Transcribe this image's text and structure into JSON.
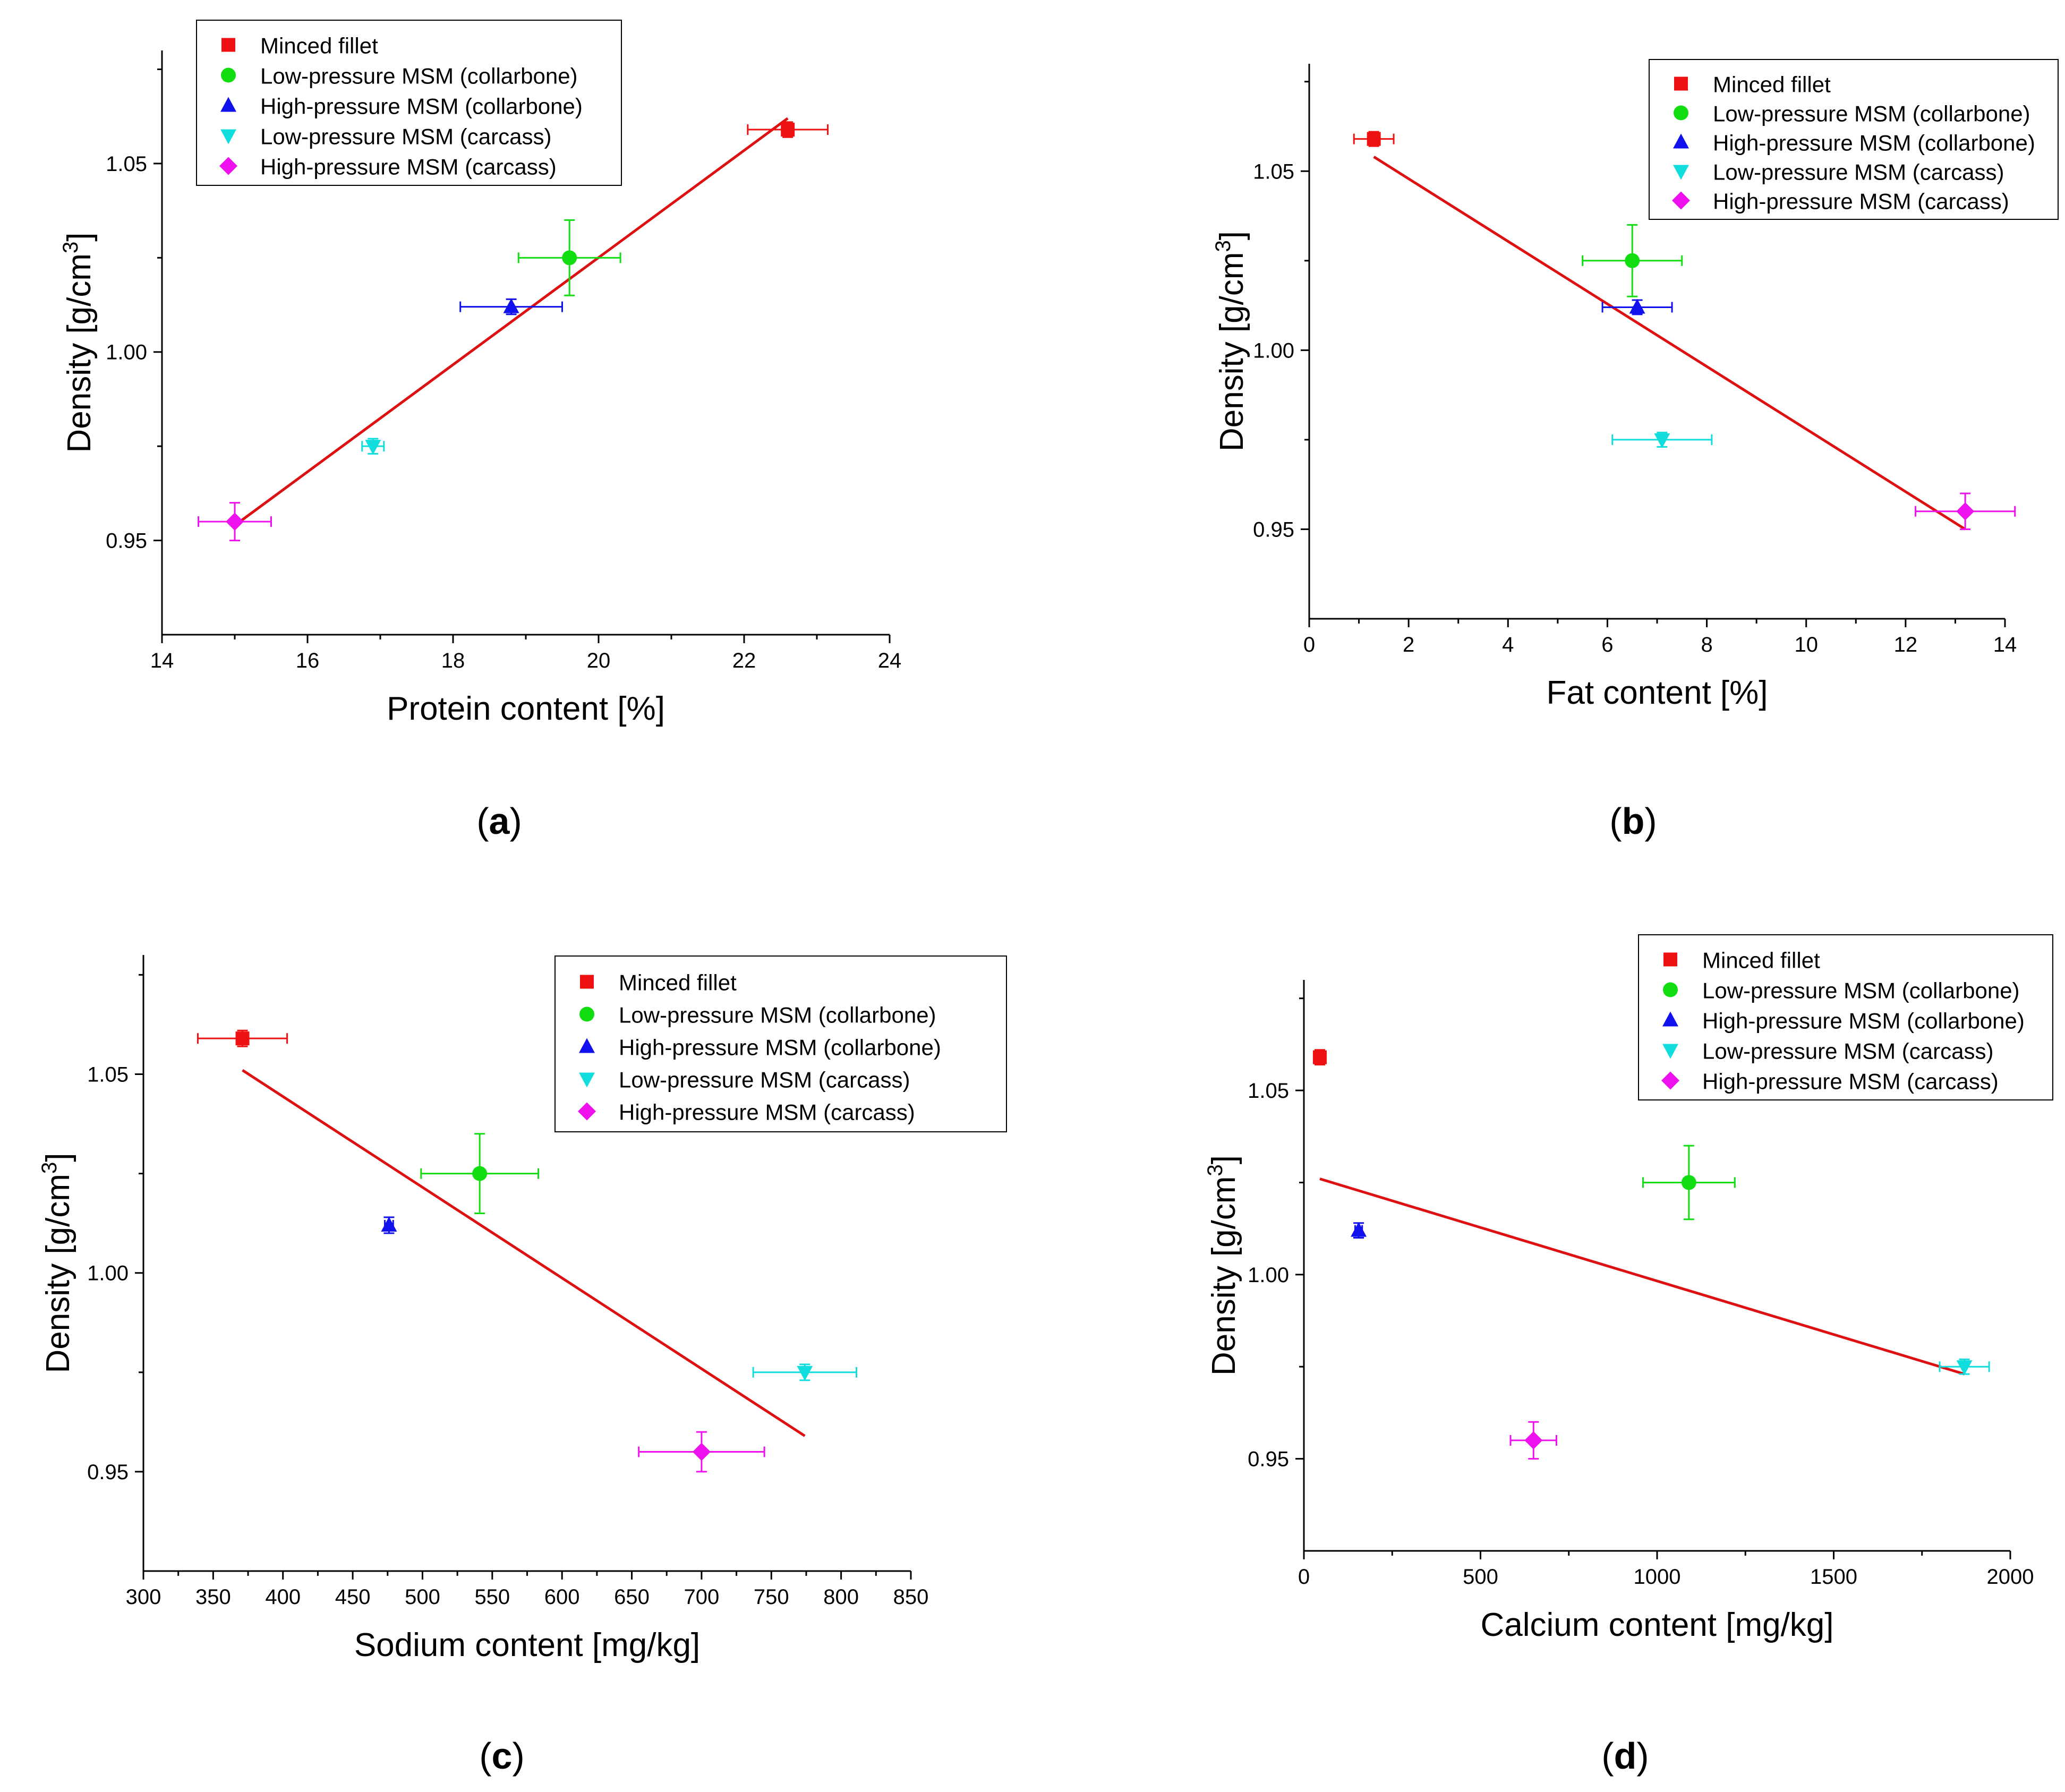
{
  "figure": {
    "captions": [
      "(a)",
      "(b)",
      "(c)",
      "(d)"
    ],
    "caption_letters": [
      "a",
      "b",
      "c",
      "d"
    ]
  },
  "legend_labels": [
    "Minced fillet",
    "Low-pressure MSM (collarbone)",
    "High-pressure MSM (collarbone)",
    "Low-pressure MSM (carcass)",
    "High-pressure MSM (carcass)"
  ],
  "colors": {
    "minced_fillet": "#ee1111",
    "low_pressure_collarbone": "#11dd11",
    "high_pressure_collarbone": "#1111ee",
    "low_pressure_carcass": "#11dddd",
    "high_pressure_carcass": "#ee11ee",
    "fit_line": "#dd1111"
  },
  "chart_data": [
    {
      "id": "a",
      "type": "scatter",
      "xlabel": "Protein content [%]",
      "ylabel": "Density [g/cm",
      "ylabel_sup": "3",
      "ylabel_end": "]",
      "xlim": [
        14,
        24
      ],
      "ylim": [
        0.925,
        1.08
      ],
      "xticks": [
        "14",
        "16",
        "18",
        "20",
        "22",
        "24"
      ],
      "yticks": [
        "0.95",
        "1.00",
        "1.05"
      ],
      "series": [
        {
          "name": "Minced fillet",
          "x": 22.6,
          "y": 1.059,
          "xerr": 0.55,
          "yerr": 0.002
        },
        {
          "name": "Low-pressure MSM (collarbone)",
          "x": 19.6,
          "y": 1.025,
          "xerr": 0.7,
          "yerr": 0.01
        },
        {
          "name": "High-pressure MSM (collarbone)",
          "x": 18.8,
          "y": 1.012,
          "xerr": 0.7,
          "yerr": 0.002
        },
        {
          "name": "Low-pressure MSM (carcass)",
          "x": 16.9,
          "y": 0.975,
          "xerr": 0.15,
          "yerr": 0.002
        },
        {
          "name": "High-pressure MSM (carcass)",
          "x": 15.0,
          "y": 0.955,
          "xerr": 0.5,
          "yerr": 0.005
        }
      ],
      "fit_line": {
        "x": [
          15.0,
          22.6
        ],
        "y": [
          0.954,
          1.062
        ]
      }
    },
    {
      "id": "b",
      "type": "scatter",
      "xlabel": "Fat content [%]",
      "ylabel": "Density [g/cm",
      "ylabel_sup": "3",
      "ylabel_end": "]",
      "xlim": [
        0,
        14
      ],
      "ylim": [
        0.925,
        1.08
      ],
      "xticks": [
        "0",
        "2",
        "4",
        "6",
        "8",
        "10",
        "12",
        "14"
      ],
      "yticks": [
        "0.95",
        "1.00",
        "1.05"
      ],
      "series": [
        {
          "name": "Minced fillet",
          "x": 1.3,
          "y": 1.059,
          "xerr": 0.4,
          "yerr": 0.002
        },
        {
          "name": "Low-pressure MSM (collarbone)",
          "x": 6.5,
          "y": 1.025,
          "xerr": 1.0,
          "yerr": 0.01
        },
        {
          "name": "High-pressure MSM (collarbone)",
          "x": 6.6,
          "y": 1.012,
          "xerr": 0.7,
          "yerr": 0.002
        },
        {
          "name": "Low-pressure MSM (carcass)",
          "x": 7.1,
          "y": 0.975,
          "xerr": 1.0,
          "yerr": 0.002
        },
        {
          "name": "High-pressure MSM (carcass)",
          "x": 13.2,
          "y": 0.955,
          "xerr": 1.0,
          "yerr": 0.005
        }
      ],
      "fit_line": {
        "x": [
          1.3,
          13.2
        ],
        "y": [
          1.054,
          0.95
        ]
      }
    },
    {
      "id": "c",
      "type": "scatter",
      "xlabel": "Sodium content [mg/kg]",
      "ylabel": "Density [g/cm",
      "ylabel_sup": "3",
      "ylabel_end": "]",
      "xlim": [
        300,
        850
      ],
      "ylim": [
        0.925,
        1.08
      ],
      "xticks": [
        "300",
        "350",
        "400",
        "450",
        "500",
        "550",
        "600",
        "650",
        "700",
        "750",
        "800",
        "850"
      ],
      "yticks": [
        "0.95",
        "1.00",
        "1.05"
      ],
      "series": [
        {
          "name": "Minced fillet",
          "x": 371,
          "y": 1.059,
          "xerr": 32,
          "yerr": 0.002
        },
        {
          "name": "Low-pressure MSM (collarbone)",
          "x": 541,
          "y": 1.025,
          "xerr": 42,
          "yerr": 0.01
        },
        {
          "name": "High-pressure MSM (collarbone)",
          "x": 476,
          "y": 1.012,
          "xerr": 3,
          "yerr": 0.002
        },
        {
          "name": "Low-pressure MSM (carcass)",
          "x": 774,
          "y": 0.975,
          "xerr": 37,
          "yerr": 0.002
        },
        {
          "name": "High-pressure MSM (carcass)",
          "x": 700,
          "y": 0.955,
          "xerr": 45,
          "yerr": 0.005
        }
      ],
      "fit_line": {
        "x": [
          371,
          774
        ],
        "y": [
          1.051,
          0.959
        ]
      }
    },
    {
      "id": "d",
      "type": "scatter",
      "xlabel": "Calcium content [mg/kg]",
      "ylabel": "Density [g/cm",
      "ylabel_sup": "3",
      "ylabel_end": "]",
      "xlim": [
        0,
        2000
      ],
      "ylim": [
        0.925,
        1.08
      ],
      "xticks": [
        "0",
        "500",
        "1000",
        "1500",
        "2000"
      ],
      "yticks": [
        "0.95",
        "1.00",
        "1.05"
      ],
      "series": [
        {
          "name": "Minced fillet",
          "x": 45,
          "y": 1.059,
          "xerr": 10,
          "yerr": 0.002
        },
        {
          "name": "Low-pressure MSM (collarbone)",
          "x": 1090,
          "y": 1.025,
          "xerr": 130,
          "yerr": 0.01
        },
        {
          "name": "High-pressure MSM (collarbone)",
          "x": 155,
          "y": 1.012,
          "xerr": 10,
          "yerr": 0.002
        },
        {
          "name": "Low-pressure MSM (carcass)",
          "x": 1870,
          "y": 0.975,
          "xerr": 70,
          "yerr": 0.002
        },
        {
          "name": "High-pressure MSM (carcass)",
          "x": 650,
          "y": 0.955,
          "xerr": 65,
          "yerr": 0.005
        }
      ],
      "fit_line": {
        "x": [
          45,
          1870
        ],
        "y": [
          1.026,
          0.973
        ]
      }
    }
  ]
}
